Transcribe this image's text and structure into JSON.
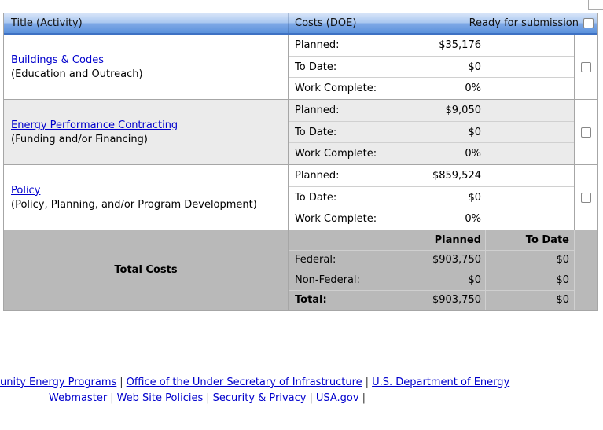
{
  "header": {
    "title_col": "Title (Activity)",
    "costs_col": "Costs (DOE)",
    "ready_label": "Ready for submission"
  },
  "cost_labels": {
    "planned": "Planned:",
    "todate": "To Date:",
    "work": "Work Complete:"
  },
  "rows": [
    {
      "title": "Buildings & Codes",
      "subtitle": "(Education and Outreach)",
      "planned": "$35,176",
      "todate": "$0",
      "work": "0%"
    },
    {
      "title": "Energy Performance Contracting",
      "subtitle": "(Funding and/or Financing)",
      "planned": "$9,050",
      "todate": "$0",
      "work": "0%"
    },
    {
      "title": "Policy",
      "subtitle": "(Policy, Planning, and/or Program Development)",
      "planned": "$859,524",
      "todate": "$0",
      "work": "0%"
    }
  ],
  "totals": {
    "title": "Total Costs",
    "col_planned": "Planned",
    "col_todate": "To Date",
    "federal_label": "Federal:",
    "federal_planned": "$903,750",
    "federal_todate": "$0",
    "nonfederal_label": "Non-Federal:",
    "nonfederal_planned": "$0",
    "nonfederal_todate": "$0",
    "total_label": "Total:",
    "total_planned": "$903,750",
    "total_todate": "$0"
  },
  "footer": {
    "separator": "|",
    "link1": "unity Energy Programs",
    "link2": "Office of the Under Secretary of Infrastructure",
    "link3": "U.S. Department of Energy",
    "link4": "Webmaster",
    "link5": "Web Site Policies",
    "link6": "Security & Privacy",
    "link7": "USA.gov"
  },
  "colors": {
    "link": "#0000cc",
    "header_grad_top": "#d7e4f8",
    "header_grad_mid": "#a9c7f0",
    "header_grad_mid2": "#7fa9e6",
    "header_grad_bottom": "#5b92dc",
    "header_border": "#3e71c3",
    "alt_row_bg": "#ebebeb",
    "total_bg": "#b9b9b9",
    "border": "#a6a6a6",
    "subborder": "#d0d0d0",
    "pipe": "#333333"
  }
}
